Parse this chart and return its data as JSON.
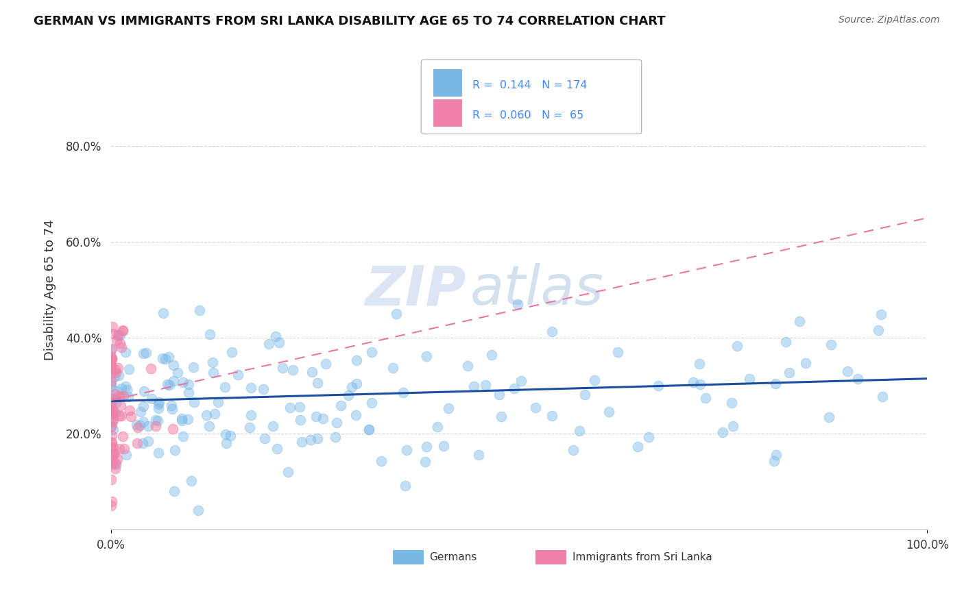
{
  "title": "GERMAN VS IMMIGRANTS FROM SRI LANKA DISABILITY AGE 65 TO 74 CORRELATION CHART",
  "source": "Source: ZipAtlas.com",
  "ylabel": "Disability Age 65 to 74",
  "watermark_zip": "ZIP",
  "watermark_atlas": "atlas",
  "german_scatter_color": "#7ab8e8",
  "german_scatter_edge": "#7ab8e8",
  "srilanka_scatter_color": "#f080a8",
  "srilanka_scatter_edge": "#f080a8",
  "german_line_color": "#1a4fa0",
  "srilanka_line_color": "#e878a0",
  "legend_box_color": "#7ab8e8",
  "legend_pink_color": "#f080a8",
  "background_color": "#ffffff",
  "grid_color": "#cccccc",
  "xlim": [
    0.0,
    1.0
  ],
  "ylim": [
    0.0,
    1.0
  ],
  "ytick_positions": [
    0.2,
    0.4,
    0.6,
    0.8
  ],
  "ytick_labels": [
    "20.0%",
    "40.0%",
    "60.0%",
    "80.0%"
  ],
  "xtick_positions": [
    0.0,
    1.0
  ],
  "xtick_labels": [
    "0.0%",
    "100.0%"
  ],
  "R_german": 0.144,
  "N_german": 174,
  "R_srilanka": 0.06,
  "N_srilanka": 65,
  "german_line_y0": 0.268,
  "german_line_y1": 0.315,
  "srilanka_line_y0": 0.27,
  "srilanka_line_y1": 0.65
}
